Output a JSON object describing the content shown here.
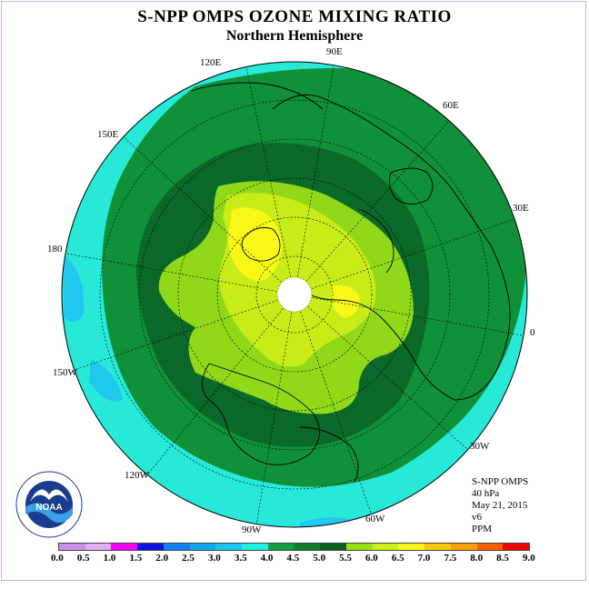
{
  "title": "S-NPP OMPS OZONE MIXING RATIO",
  "subtitle": "Northern Hemisphere",
  "longitude_labels": {
    "lon_90e": "90E",
    "lon_60e": "60E",
    "lon_120e": "120E",
    "lon_150e": "150E",
    "lon_30e": "30E",
    "lon_180": "180",
    "lon_0": "0",
    "lon_150w": "150W",
    "lon_30w": "30W",
    "lon_120w": "120W",
    "lon_60w": "60W",
    "lon_90w": "90W"
  },
  "info": {
    "instrument": "S-NPP OMPS",
    "level": "40 hPa",
    "date": "May 21, 2015",
    "version": "v6",
    "units": "PPM"
  },
  "logo_text": "NOAA",
  "colorbar": {
    "ticks": [
      "0.0",
      "0.5",
      "1.0",
      "1.5",
      "2.0",
      "2.5",
      "3.0",
      "3.5",
      "4.0",
      "4.5",
      "5.0",
      "5.5",
      "6.0",
      "6.5",
      "7.0",
      "7.5",
      "8.0",
      "8.5",
      "9.0"
    ],
    "colors": [
      "#c890e8",
      "#e0b0f0",
      "#ff00ff",
      "#1010e0",
      "#1080f0",
      "#10a8f0",
      "#18c8f0",
      "#20f0e0",
      "#10a040",
      "#108030",
      "#0a6020",
      "#98e010",
      "#d0f010",
      "#f8f818",
      "#f8c800",
      "#f8a000",
      "#f86000",
      "#f80000",
      "#906040"
    ]
  },
  "map_colors": {
    "outer": "#28e8d8",
    "ring_45": "#109038",
    "ring_50": "#0a6828",
    "ring_55": "#90d818",
    "ring_60": "#c8ec18",
    "ring_65": "#f8f818",
    "polar_cap": "#ffffff",
    "low_patch": "#20c8f0"
  }
}
